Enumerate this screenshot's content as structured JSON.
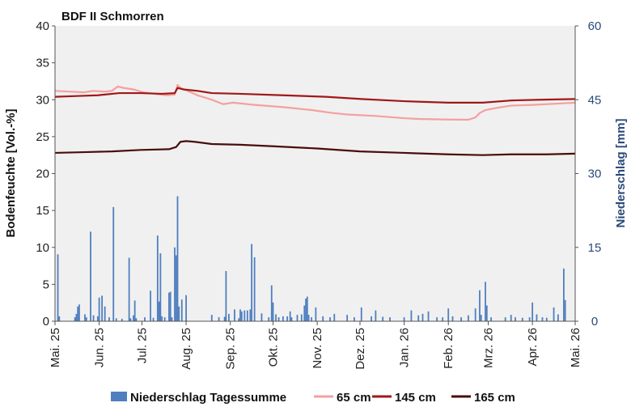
{
  "chart_data": {
    "type": "line",
    "title": "BDF II Schmorren",
    "ylabel": "Bodenfeuchte [Vol.-%]",
    "y2label": "Niederschlag [mm]",
    "ylim": [
      0,
      40
    ],
    "y2lim": [
      0,
      60
    ],
    "yticks": [
      0,
      5,
      10,
      15,
      20,
      25,
      30,
      35,
      40
    ],
    "y2ticks": [
      0,
      15,
      30,
      45,
      60
    ],
    "xlim": [
      0,
      365
    ],
    "x_ticks": [
      {
        "label": "Mai. 25",
        "day": 0
      },
      {
        "label": "Jun. 25",
        "day": 31
      },
      {
        "label": "Jul. 25",
        "day": 61
      },
      {
        "label": "Aug. 25",
        "day": 92
      },
      {
        "label": "Sep. 25",
        "day": 123
      },
      {
        "label": "Okt. 25",
        "day": 153
      },
      {
        "label": "Nov. 25",
        "day": 184
      },
      {
        "label": "Dez. 25",
        "day": 214
      },
      {
        "label": "Jan. 26",
        "day": 245
      },
      {
        "label": "Feb. 26",
        "day": 276
      },
      {
        "label": "Mrz. 26",
        "day": 304
      },
      {
        "label": "Apr. 26",
        "day": 335
      },
      {
        "label": "Mai. 26",
        "day": 365
      }
    ],
    "grid": false,
    "legend_position": "bottom",
    "series": [
      {
        "name": "65 cm",
        "color": "#f4a0a0",
        "points": [
          [
            0,
            31.2
          ],
          [
            10,
            31.1
          ],
          [
            20,
            31.0
          ],
          [
            27,
            31.2
          ],
          [
            35,
            31.1
          ],
          [
            40,
            31.2
          ],
          [
            44,
            31.8
          ],
          [
            48,
            31.6
          ],
          [
            55,
            31.4
          ],
          [
            62,
            31.0
          ],
          [
            70,
            30.8
          ],
          [
            78,
            30.6
          ],
          [
            84,
            30.7
          ],
          [
            86,
            32.0
          ],
          [
            88,
            31.6
          ],
          [
            93,
            31.2
          ],
          [
            100,
            30.6
          ],
          [
            110,
            30.0
          ],
          [
            118,
            29.4
          ],
          [
            125,
            29.6
          ],
          [
            140,
            29.3
          ],
          [
            160,
            29.0
          ],
          [
            180,
            28.6
          ],
          [
            195,
            28.2
          ],
          [
            205,
            28.0
          ],
          [
            225,
            27.8
          ],
          [
            245,
            27.5
          ],
          [
            255,
            27.4
          ],
          [
            280,
            27.3
          ],
          [
            290,
            27.3
          ],
          [
            295,
            27.6
          ],
          [
            298,
            28.2
          ],
          [
            302,
            28.6
          ],
          [
            310,
            28.9
          ],
          [
            320,
            29.2
          ],
          [
            335,
            29.3
          ],
          [
            345,
            29.4
          ],
          [
            355,
            29.5
          ],
          [
            365,
            29.6
          ]
        ]
      },
      {
        "name": "145 cm",
        "color": "#a01818",
        "points": [
          [
            0,
            30.4
          ],
          [
            15,
            30.5
          ],
          [
            30,
            30.6
          ],
          [
            45,
            30.9
          ],
          [
            60,
            30.9
          ],
          [
            75,
            30.8
          ],
          [
            84,
            30.9
          ],
          [
            86,
            31.6
          ],
          [
            90,
            31.4
          ],
          [
            100,
            31.2
          ],
          [
            110,
            30.9
          ],
          [
            130,
            30.8
          ],
          [
            160,
            30.6
          ],
          [
            190,
            30.4
          ],
          [
            215,
            30.1
          ],
          [
            245,
            29.8
          ],
          [
            276,
            29.6
          ],
          [
            300,
            29.6
          ],
          [
            320,
            29.9
          ],
          [
            340,
            30.0
          ],
          [
            365,
            30.1
          ]
        ]
      },
      {
        "name": "165 cm",
        "color": "#4a0c0c",
        "points": [
          [
            0,
            22.8
          ],
          [
            20,
            22.9
          ],
          [
            40,
            23.0
          ],
          [
            60,
            23.2
          ],
          [
            80,
            23.3
          ],
          [
            85,
            23.6
          ],
          [
            88,
            24.3
          ],
          [
            92,
            24.4
          ],
          [
            98,
            24.3
          ],
          [
            110,
            24.0
          ],
          [
            130,
            23.9
          ],
          [
            153,
            23.7
          ],
          [
            184,
            23.4
          ],
          [
            214,
            23.0
          ],
          [
            245,
            22.8
          ],
          [
            276,
            22.6
          ],
          [
            300,
            22.5
          ],
          [
            320,
            22.6
          ],
          [
            345,
            22.6
          ],
          [
            365,
            22.7
          ]
        ]
      },
      {
        "name": "Niederschlag Tagessumme",
        "type": "bar",
        "axis": "right",
        "color": "#4f7fbf",
        "points": [
          [
            2,
            13.6
          ],
          [
            3,
            1.0
          ],
          [
            14,
            0.8
          ],
          [
            15,
            1.5
          ],
          [
            16,
            3.0
          ],
          [
            17,
            3.4
          ],
          [
            21,
            1.4
          ],
          [
            22,
            0.8
          ],
          [
            25,
            18.2
          ],
          [
            27,
            1.2
          ],
          [
            30,
            1.0
          ],
          [
            31,
            4.8
          ],
          [
            33,
            5.2
          ],
          [
            35,
            3.0
          ],
          [
            38,
            0.8
          ],
          [
            41,
            23.2
          ],
          [
            43,
            0.6
          ],
          [
            47,
            0.5
          ],
          [
            52,
            12.9
          ],
          [
            53,
            0.6
          ],
          [
            55,
            1.2
          ],
          [
            56,
            4.2
          ],
          [
            57,
            0.6
          ],
          [
            63,
            0.8
          ],
          [
            67,
            6.2
          ],
          [
            69,
            0.7
          ],
          [
            72,
            17.4
          ],
          [
            73,
            4.0
          ],
          [
            74,
            13.8
          ],
          [
            75,
            1.0
          ],
          [
            77,
            0.8
          ],
          [
            80,
            5.8
          ],
          [
            81,
            6.0
          ],
          [
            82,
            0.8
          ],
          [
            84,
            15.0
          ],
          [
            85,
            13.4
          ],
          [
            86,
            25.4
          ],
          [
            87,
            3.0
          ],
          [
            89,
            4.4
          ],
          [
            92,
            5.3
          ],
          [
            110,
            1.3
          ],
          [
            115,
            0.8
          ],
          [
            119,
            0.9
          ],
          [
            120,
            10.2
          ],
          [
            122,
            1.5
          ],
          [
            126,
            2.4
          ],
          [
            129,
            0.6
          ],
          [
            130,
            2.4
          ],
          [
            131,
            2.0
          ],
          [
            133,
            2.2
          ],
          [
            135,
            2.2
          ],
          [
            137,
            2.4
          ],
          [
            138,
            15.7
          ],
          [
            140,
            13.0
          ],
          [
            145,
            1.6
          ],
          [
            150,
            0.8
          ],
          [
            152,
            7.3
          ],
          [
            153,
            3.8
          ],
          [
            155,
            1.4
          ],
          [
            157,
            0.8
          ],
          [
            160,
            1.0
          ],
          [
            163,
            1.0
          ],
          [
            165,
            2.0
          ],
          [
            166,
            0.8
          ],
          [
            170,
            1.3
          ],
          [
            173,
            1.4
          ],
          [
            175,
            3.2
          ],
          [
            176,
            4.6
          ],
          [
            177,
            5.0
          ],
          [
            178,
            1.3
          ],
          [
            180,
            0.8
          ],
          [
            183,
            2.8
          ],
          [
            188,
            1.0
          ],
          [
            193,
            0.8
          ],
          [
            196,
            1.5
          ],
          [
            205,
            1.3
          ],
          [
            210,
            0.8
          ],
          [
            215,
            2.8
          ],
          [
            222,
            1.0
          ],
          [
            225,
            2.2
          ],
          [
            230,
            0.9
          ],
          [
            235,
            0.8
          ],
          [
            245,
            0.8
          ],
          [
            250,
            2.2
          ],
          [
            255,
            1.2
          ],
          [
            258,
            1.5
          ],
          [
            262,
            2.0
          ],
          [
            268,
            0.8
          ],
          [
            272,
            0.8
          ],
          [
            276,
            2.6
          ],
          [
            279,
            1.0
          ],
          [
            285,
            0.8
          ],
          [
            290,
            1.2
          ],
          [
            295,
            2.6
          ],
          [
            298,
            6.3
          ],
          [
            299,
            1.3
          ],
          [
            302,
            8.0
          ],
          [
            303,
            3.2
          ],
          [
            306,
            0.8
          ],
          [
            316,
            0.8
          ],
          [
            320,
            1.3
          ],
          [
            323,
            0.8
          ],
          [
            328,
            0.7
          ],
          [
            333,
            0.8
          ],
          [
            335,
            3.8
          ],
          [
            338,
            1.4
          ],
          [
            342,
            0.8
          ],
          [
            345,
            0.7
          ],
          [
            350,
            2.8
          ],
          [
            353,
            1.4
          ],
          [
            357,
            10.7
          ],
          [
            358,
            4.3
          ]
        ]
      }
    ]
  }
}
